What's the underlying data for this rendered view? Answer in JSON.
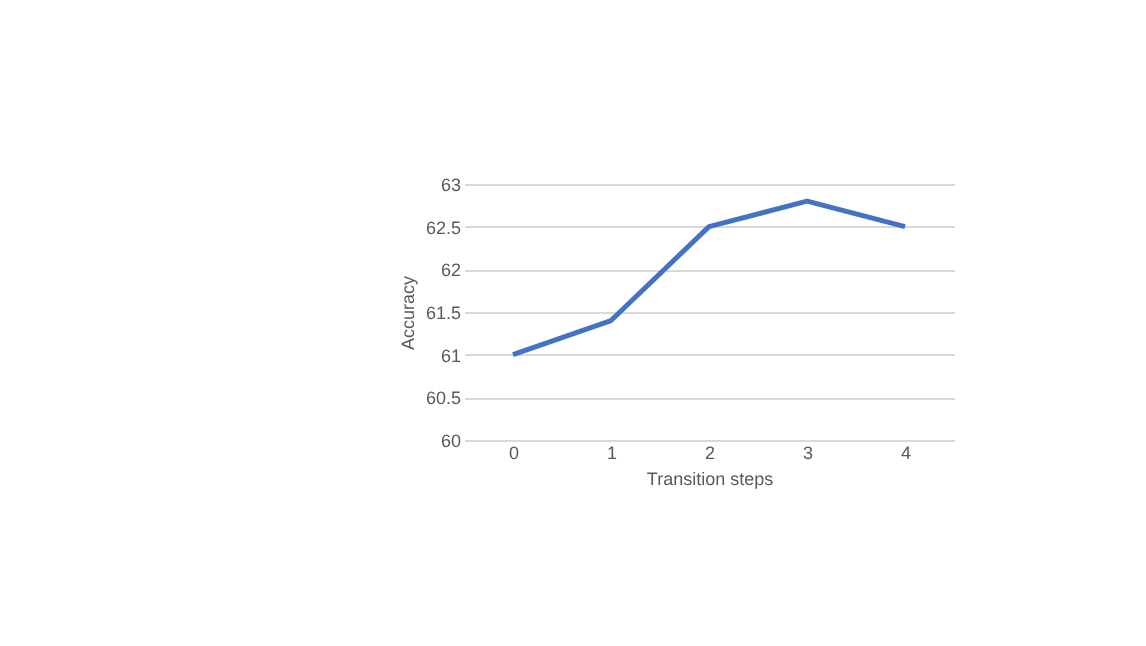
{
  "chart_data": {
    "type": "line",
    "xlabel": "Transition steps",
    "ylabel": "Accuracy",
    "categories": [
      "0",
      "1",
      "2",
      "3",
      "4"
    ],
    "series": [
      {
        "color": "#4472c4",
        "values": [
          61,
          61.4,
          62.5,
          62.8,
          62.5
        ]
      }
    ],
    "ylim": [
      60,
      63
    ],
    "yticks": [
      60,
      60.5,
      61,
      61.5,
      62,
      62.5,
      63
    ],
    "grid": "y",
    "marker": "none",
    "line_style": "solid",
    "legend": false
  }
}
